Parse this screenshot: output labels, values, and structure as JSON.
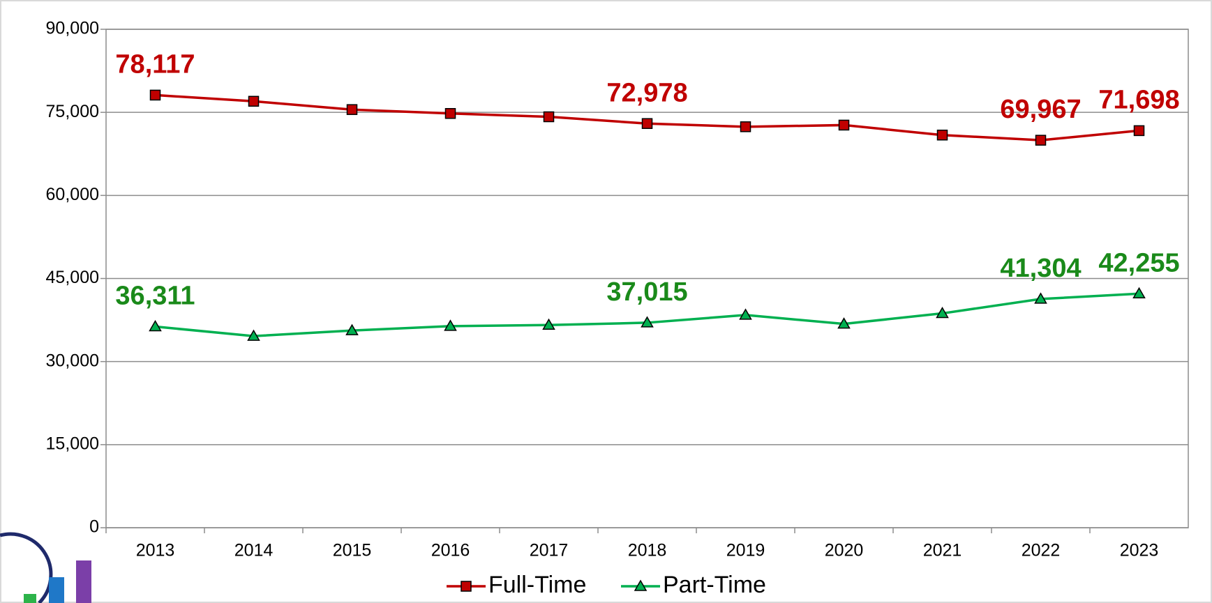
{
  "chart_data": {
    "type": "line",
    "categories": [
      "2013",
      "2014",
      "2015",
      "2016",
      "2017",
      "2018",
      "2019",
      "2020",
      "2021",
      "2022",
      "2023"
    ],
    "series": [
      {
        "name": "Full-Time",
        "color": "#c00000",
        "marker": "square",
        "values": [
          78117,
          77000,
          75500,
          74800,
          74200,
          72978,
          72400,
          72700,
          70900,
          69967,
          71698
        ],
        "value_labels": [
          "78,117",
          null,
          null,
          null,
          null,
          "72,978",
          null,
          null,
          null,
          "69,967",
          "71,698"
        ]
      },
      {
        "name": "Part-Time",
        "color": "#00b050",
        "label_color": "#1a8a1a",
        "marker": "triangle",
        "values": [
          36311,
          34600,
          35600,
          36400,
          36600,
          37015,
          38400,
          36800,
          38700,
          41304,
          42255
        ],
        "value_labels": [
          "36,311",
          null,
          null,
          null,
          null,
          "37,015",
          null,
          null,
          null,
          "41,304",
          "42,255"
        ]
      }
    ],
    "ylim": [
      0,
      90000
    ],
    "yticks": [
      0,
      {
        "value": 15000,
        "label": "15,000"
      },
      {
        "value": 30000,
        "label": "30,000"
      },
      {
        "value": 45000,
        "label": "45,000"
      },
      {
        "value": 60000,
        "label": "60,000"
      },
      {
        "value": 75000,
        "label": "75,000"
      },
      {
        "value": 90000,
        "label": "90,000"
      }
    ],
    "grid": true,
    "legend": "bottom"
  }
}
